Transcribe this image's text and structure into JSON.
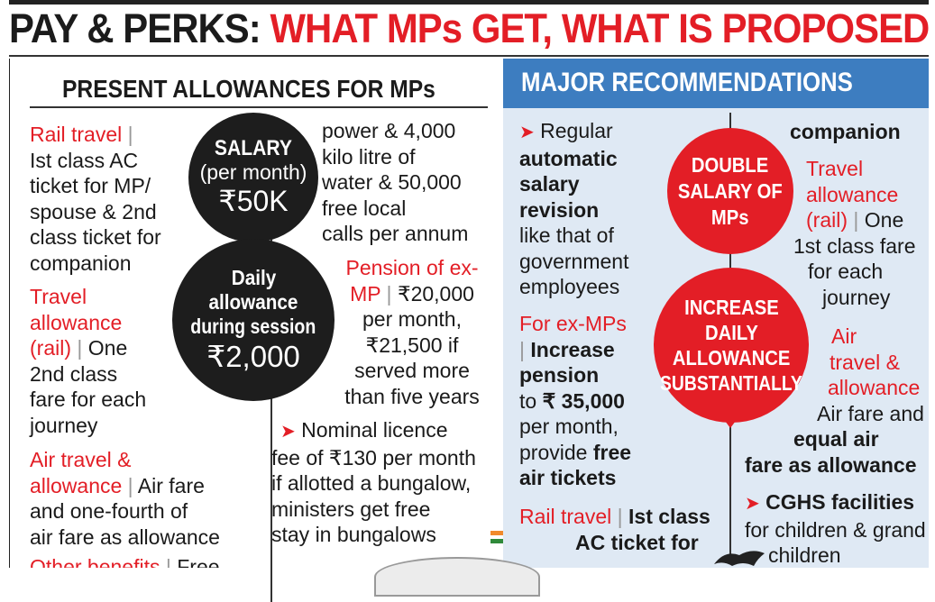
{
  "headline": {
    "part1": "PAY & PERKS: ",
    "part2": "WHAT MPs GET, WHAT IS PROPOSED"
  },
  "left": {
    "title": "PRESENT ALLOWANCES FOR MPs",
    "rail_travel": {
      "label": "Rail travel",
      "sep": " | ",
      "lines": [
        "Ist class AC",
        "ticket for MP/",
        "spouse & 2nd",
        "class ticket for",
        "companion"
      ]
    },
    "travel_allowance": {
      "label_lines": [
        "Travel",
        "allowance",
        "(rail)"
      ],
      "sep": " | ",
      "first": "One",
      "lines": [
        "2nd class",
        "fare for each",
        "journey"
      ]
    },
    "air_travel": {
      "label_lines": [
        "Air travel &",
        "allowance"
      ],
      "sep": " | ",
      "first": "Air fare",
      "lines": [
        "and one-fourth of",
        "air fare as allowance"
      ]
    },
    "other_benefits": {
      "label": "Other benefits",
      "sep": " | ",
      "first": "Free"
    },
    "salary_circle": {
      "title": "SALARY",
      "sub": "(per month)",
      "amount": "₹50K"
    },
    "daily_circle": {
      "line1": "Daily",
      "line2": "allowance",
      "line3": "during session",
      "amount": "₹2,000"
    },
    "perks_lines": [
      "power & 4,000",
      "kilo litre of",
      "water & 50,000",
      "free local",
      "calls per annum"
    ],
    "pension": {
      "label_lines": [
        "Pension of ex-",
        "MP"
      ],
      "sep": " | ",
      "first": "₹20,000",
      "lines": [
        "per month,",
        "₹21,500 if",
        "served more",
        "than five years"
      ]
    },
    "licence": {
      "lines": [
        "Nominal licence",
        "fee of ₹130 per month",
        "if allotted a bungalow,",
        "ministers get free",
        "stay in bungalows"
      ]
    }
  },
  "right": {
    "title": "MAJOR RECOMMENDATIONS",
    "regular": {
      "first": "Regular",
      "bold_lines": [
        "automatic",
        "salary",
        "revision"
      ],
      "lines": [
        "like that of",
        "government",
        "employees"
      ]
    },
    "ex_mps": {
      "label": "For ex-MPs",
      "sep": "| ",
      "bold1": "Increase",
      "bold2": "pension",
      "to_prefix": "to ",
      "to_amount": "₹ 35,000",
      "line_month": "per month,",
      "provide": "provide ",
      "provide_bold": "free",
      "line_air": "air tickets"
    },
    "rail": {
      "label": "Rail travel",
      "sep": " | ",
      "bold1": "Ist class",
      "bold2": "AC ticket for"
    },
    "companion": "companion",
    "double_circle": [
      "DOUBLE",
      "SALARY OF",
      "MPs"
    ],
    "increase_circle": [
      "INCREASE",
      "DAILY",
      "ALLOWANCE",
      "SUBSTANTIALLY"
    ],
    "travel_allow": {
      "label_lines": [
        "Travel",
        "allowance",
        "(rail)"
      ],
      "sep": " | ",
      "first": "One",
      "lines": [
        "1st class fare",
        "for each",
        "journey"
      ]
    },
    "air": {
      "label_lines": [
        "Air",
        "travel &",
        "allowance"
      ],
      "lines": [
        "Air fare and"
      ],
      "bold_lines": [
        "equal air",
        "fare as allowance"
      ]
    },
    "cghs": {
      "bold": "CGHS facilities",
      "lines": [
        "for children & grand",
        "children"
      ]
    }
  },
  "colors": {
    "red": "#e31e26",
    "blue_header": "#3d7dc0",
    "light_blue": "#dfe9f4",
    "black": "#1d1d1d"
  }
}
